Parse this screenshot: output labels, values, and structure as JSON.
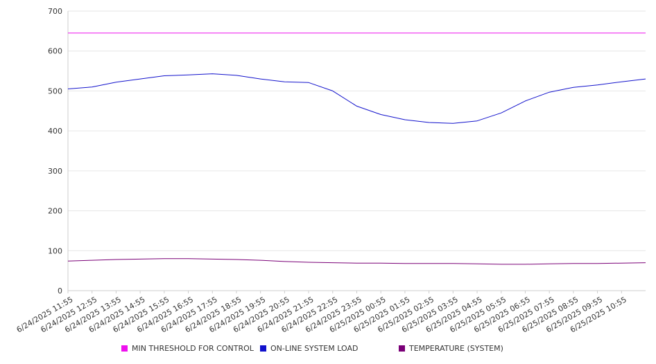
{
  "chart_data": {
    "type": "line",
    "title": "",
    "xlabel": "",
    "ylabel": "",
    "ylim": [
      0,
      700
    ],
    "yticks": [
      0,
      100,
      200,
      300,
      400,
      500,
      600,
      700
    ],
    "grid": true,
    "legend_position": "bottom",
    "xtick_labels": [
      "6/24/2025 11:55",
      "6/24/2025 12:55",
      "6/24/2025 13:55",
      "6/24/2025 14:55",
      "6/24/2025 15:55",
      "6/24/2025 16:55",
      "6/24/2025 17:55",
      "6/24/2025 18:55",
      "6/24/2025 19:55",
      "6/24/2025 20:55",
      "6/24/2025 21:55",
      "6/24/2025 22:55",
      "6/24/2025 23:55",
      "6/25/2025 00:55",
      "6/25/2025 01:55",
      "6/25/2025 02:55",
      "6/25/2025 03:55",
      "6/25/2025 04:55",
      "6/25/2025 05:55",
      "6/25/2025 06:55",
      "6/25/2025 07:55",
      "6/25/2025 08:55",
      "6/25/2025 09:55",
      "6/25/2025 10:55"
    ],
    "x": [
      "6/24/2025 11:55",
      "6/24/2025 12:55",
      "6/24/2025 13:55",
      "6/24/2025 14:55",
      "6/24/2025 15:55",
      "6/24/2025 16:55",
      "6/24/2025 17:55",
      "6/24/2025 18:55",
      "6/24/2025 19:55",
      "6/24/2025 20:55",
      "6/24/2025 21:55",
      "6/24/2025 22:55",
      "6/24/2025 23:55",
      "6/25/2025 00:55",
      "6/25/2025 01:55",
      "6/25/2025 02:55",
      "6/25/2025 03:55",
      "6/25/2025 04:55",
      "6/25/2025 05:55",
      "6/25/2025 06:55",
      "6/25/2025 07:55",
      "6/25/2025 08:55",
      "6/25/2025 09:55",
      "6/25/2025 10:55",
      "6/25/2025 11:55"
    ],
    "series": [
      {
        "name": "MIN THRESHOLD FOR CONTROL",
        "color": "#ee11ee",
        "values": [
          645,
          645,
          645,
          645,
          645,
          645,
          645,
          645,
          645,
          645,
          645,
          645,
          645,
          645,
          645,
          645,
          645,
          645,
          645,
          645,
          645,
          645,
          645,
          645,
          645
        ]
      },
      {
        "name": "ON-LINE SYSTEM LOAD",
        "color": "#1111cc",
        "values": [
          505,
          510,
          522,
          530,
          538,
          540,
          543,
          539,
          530,
          523,
          521,
          500,
          462,
          441,
          428,
          421,
          419,
          425,
          445,
          475,
          497,
          509,
          515,
          523,
          530
        ]
      },
      {
        "name": "TEMPERATURE (SYSTEM)",
        "color": "#7a0077",
        "values": [
          74,
          76,
          78,
          79,
          80,
          80,
          79,
          78,
          76,
          73,
          71,
          70,
          69,
          69,
          68,
          68,
          68,
          67,
          66,
          66,
          67,
          68,
          68,
          69,
          70
        ]
      }
    ]
  }
}
